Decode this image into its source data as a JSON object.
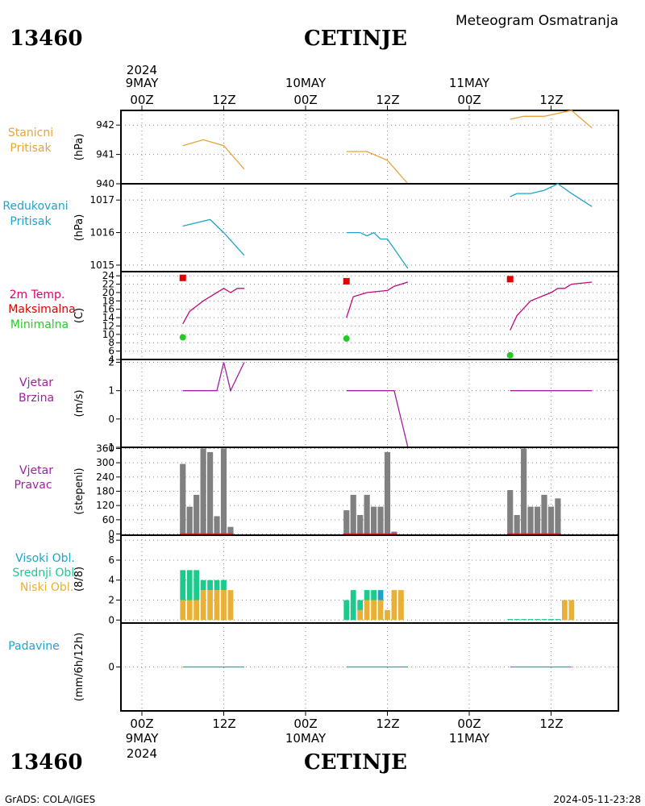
{
  "header": {
    "station_id": "13460",
    "station_name": "CETINJE",
    "chart_title": "Meteogram Osmatranja"
  },
  "footer": {
    "station_id": "13460",
    "station_name": "CETINJE",
    "software": "GrADS: COLA/IGES",
    "timestamp": "2024-05-11-23:28"
  },
  "time_axis": {
    "top_year": "2024",
    "bottom_year": "2024",
    "days": [
      {
        "date": "9MAY",
        "hour0": "00Z",
        "hour12": "12Z"
      },
      {
        "date": "10MAY",
        "hour0": "00Z",
        "hour12": "12Z"
      },
      {
        "date": "11MAY",
        "hour0": "00Z",
        "hour12": "12Z"
      }
    ]
  },
  "colors": {
    "pressure_station": "#e8a33c",
    "pressure_reduced": "#1fa3c8",
    "temp_label": "#e0006e",
    "temp_max": "#e00000",
    "temp_min": "#22cc22",
    "temp_line": "#c0087a",
    "wind": "#a020a0",
    "wind_dir_bar": "#808080",
    "wind_dir_base": "#d02020",
    "cloud_high": "#1fa3c8",
    "cloud_mid": "#1ec98c",
    "cloud_low": "#e8b034",
    "precip": "#1fa3c8"
  },
  "chart_data": [
    {
      "type": "line",
      "panel": "station_pressure",
      "label_lines": [
        "Stanicni",
        "Pritisak"
      ],
      "ylabel": "(hPa)",
      "ylim": [
        940,
        942.5
      ],
      "yticks": [
        940,
        941,
        942
      ],
      "series": [
        {
          "x": [
            6,
            9,
            12,
            15
          ],
          "y": [
            941.3,
            941.5,
            941.3,
            940.5
          ]
        },
        {
          "x": [
            30,
            33,
            36,
            39
          ],
          "y": [
            941.1,
            941.1,
            940.8,
            940.0
          ]
        },
        {
          "x": [
            54,
            56,
            59,
            63,
            66
          ],
          "y": [
            942.2,
            942.3,
            942.3,
            942.5,
            941.9
          ]
        }
      ]
    },
    {
      "type": "line",
      "panel": "reduced_pressure",
      "label_lines": [
        "Redukovani",
        "Pritisak"
      ],
      "ylabel": "(hPa)",
      "ylim": [
        1014.8,
        1017.5
      ],
      "yticks": [
        1015,
        1016,
        1017
      ],
      "series": [
        {
          "x": [
            6,
            8,
            10,
            12,
            15
          ],
          "y": [
            1016.2,
            1016.3,
            1016.4,
            1016.0,
            1015.3
          ]
        },
        {
          "x": [
            30,
            32,
            33,
            34,
            35,
            36,
            38,
            39
          ],
          "y": [
            1016.0,
            1016.0,
            1015.9,
            1016.0,
            1015.8,
            1015.8,
            1015.2,
            1014.9
          ]
        },
        {
          "x": [
            54,
            55,
            57,
            59,
            61,
            63,
            66
          ],
          "y": [
            1017.1,
            1017.2,
            1017.2,
            1017.3,
            1017.5,
            1017.2,
            1016.8
          ]
        }
      ]
    },
    {
      "type": "line",
      "panel": "temperature",
      "label_lines": [
        "2m Temp.",
        "Maksimalna",
        "Minimalna"
      ],
      "ylabel": "(C)",
      "ylim": [
        4,
        25
      ],
      "yticks": [
        4,
        6,
        8,
        10,
        12,
        14,
        16,
        18,
        20,
        22,
        24
      ],
      "series": [
        {
          "x": [
            6,
            7,
            9,
            12,
            13,
            14,
            15
          ],
          "y": [
            12.5,
            15.5,
            18,
            21,
            20,
            21,
            21
          ]
        },
        {
          "x": [
            30,
            31,
            33,
            36,
            37,
            39
          ],
          "y": [
            14,
            19,
            20,
            20.5,
            21.5,
            22.5
          ]
        },
        {
          "x": [
            54,
            55,
            57,
            60,
            61,
            62,
            63,
            66
          ],
          "y": [
            11,
            14.5,
            18,
            20,
            21,
            21,
            22,
            22.5
          ]
        }
      ],
      "max_points": [
        {
          "x": 6,
          "y": 23.5
        },
        {
          "x": 30,
          "y": 22.7
        },
        {
          "x": 54,
          "y": 23.2
        }
      ],
      "min_points": [
        {
          "x": 6,
          "y": 9.3
        },
        {
          "x": 30,
          "y": 9.0
        },
        {
          "x": 54,
          "y": 5.0
        }
      ]
    },
    {
      "type": "line",
      "panel": "wind_speed",
      "label_lines": [
        "Vjetar",
        "Brzina"
      ],
      "ylabel": "(m/s)",
      "ylim": [
        -1,
        2.1
      ],
      "yticks": [
        -1,
        0,
        1,
        2
      ],
      "series": [
        {
          "x": [
            6,
            10,
            11,
            12,
            13,
            15
          ],
          "y": [
            1,
            1,
            1,
            2,
            1,
            2
          ]
        },
        {
          "x": [
            30,
            33,
            36,
            37,
            39
          ],
          "y": [
            1,
            1,
            1,
            1,
            -1
          ]
        },
        {
          "x": [
            54,
            57,
            60,
            63,
            66
          ],
          "y": [
            1,
            1,
            1,
            1,
            1
          ]
        }
      ]
    },
    {
      "type": "bar",
      "panel": "wind_direction",
      "label_lines": [
        "Vjetar",
        "Pravac"
      ],
      "ylabel": "(stepeni)",
      "ylim": [
        -5,
        365
      ],
      "yticks": [
        0,
        60,
        120,
        180,
        240,
        300,
        360
      ],
      "x": [
        6,
        7,
        8,
        9,
        10,
        11,
        12,
        13,
        30,
        31,
        32,
        33,
        34,
        35,
        36,
        37,
        54,
        55,
        56,
        57,
        58,
        59,
        60,
        61
      ],
      "values": [
        295,
        115,
        165,
        360,
        345,
        75,
        360,
        30,
        100,
        165,
        80,
        165,
        115,
        115,
        345,
        10,
        185,
        80,
        360,
        115,
        115,
        165,
        115,
        150
      ]
    },
    {
      "type": "bar",
      "panel": "cloud_cover",
      "label_lines": [
        "Visoki Obl.",
        "Srednji Obl.",
        "Niski Obl."
      ],
      "ylabel": "(8/8)",
      "ylim": [
        -0.3,
        8.5
      ],
      "yticks": [
        0,
        2,
        4,
        6,
        8
      ],
      "x": [
        6,
        7,
        8,
        9,
        10,
        11,
        12,
        13,
        30,
        31,
        32,
        33,
        34,
        35,
        36,
        37,
        38,
        54,
        55,
        56,
        57,
        58,
        59,
        60,
        61,
        62,
        63
      ],
      "series": [
        {
          "name": "Niski Obl.",
          "values": [
            2,
            2,
            2,
            3,
            3,
            3,
            3,
            3,
            0,
            0,
            1,
            2,
            2,
            2,
            1,
            3,
            3,
            0,
            0,
            0,
            0,
            0,
            0,
            0,
            0,
            2,
            2
          ]
        },
        {
          "name": "Srednji Obl.",
          "values": [
            3,
            3,
            3,
            1,
            1,
            1,
            1,
            0,
            2,
            3,
            1,
            1,
            1,
            0,
            0,
            0,
            0,
            0.1,
            0.1,
            0.1,
            0.1,
            0.1,
            0.1,
            0.1,
            0.1,
            0,
            0
          ]
        },
        {
          "name": "Visoki Obl.",
          "values": [
            0,
            0,
            0,
            0,
            0,
            0,
            0,
            0,
            0,
            0,
            0,
            0,
            0,
            1,
            0,
            0,
            0,
            0,
            0,
            0,
            0,
            0,
            0,
            0,
            0,
            0,
            0
          ]
        }
      ]
    },
    {
      "type": "line",
      "panel": "precipitation",
      "label_lines": [
        "Padavine"
      ],
      "ylabel": "(mm/6h/12h)",
      "ylim": [
        -0.6,
        0.6
      ],
      "yticks": [
        0
      ],
      "series": [
        {
          "x": [
            6,
            15
          ],
          "y": [
            0,
            0
          ]
        },
        {
          "x": [
            30,
            39
          ],
          "y": [
            0,
            0
          ]
        },
        {
          "x": [
            54,
            63
          ],
          "y": [
            0,
            0
          ]
        }
      ]
    }
  ]
}
